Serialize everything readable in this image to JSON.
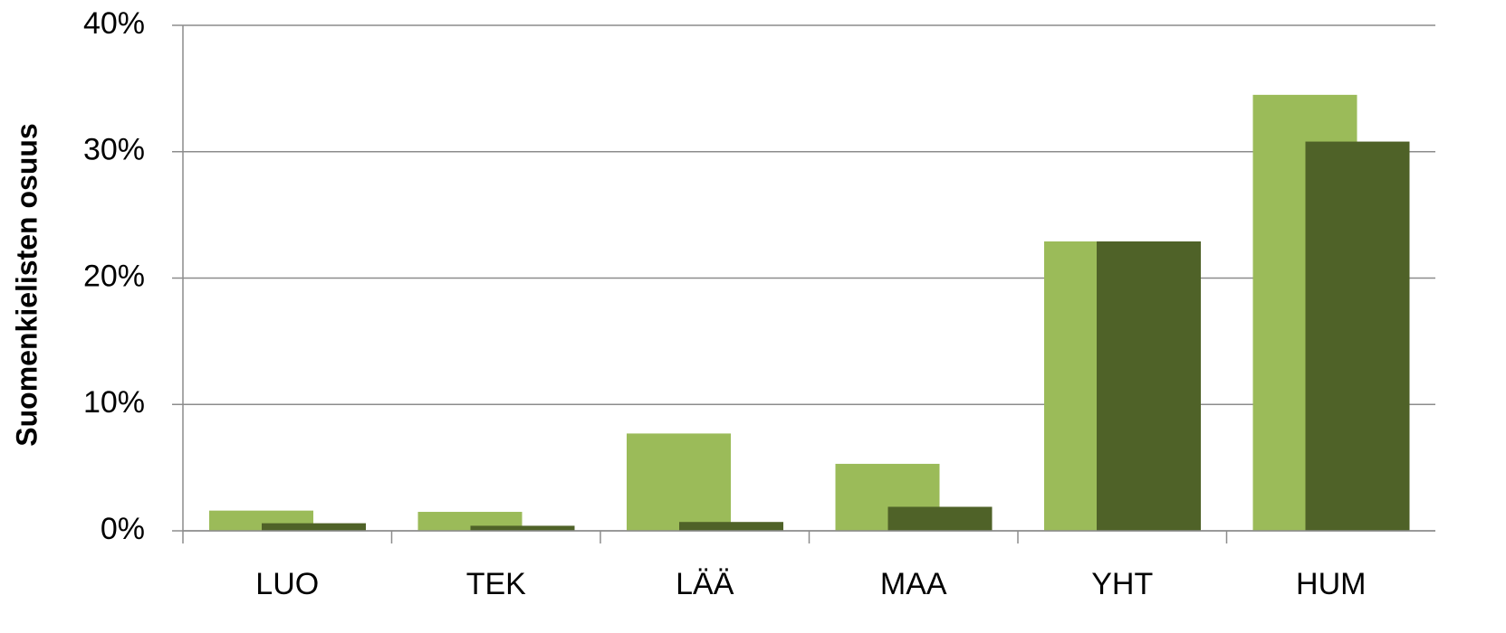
{
  "chart_data": {
    "type": "bar",
    "y_label": "Suomenkielisten osuus",
    "categories": [
      "LUO",
      "TEK",
      "LÄÄ",
      "MAA",
      "YHT",
      "HUM"
    ],
    "series": [
      {
        "color": "#9bbb59",
        "values": [
          1.6,
          1.5,
          7.7,
          5.3,
          22.9,
          34.5
        ]
      },
      {
        "color": "#4f6228",
        "values": [
          0.6,
          0.4,
          0.7,
          1.9,
          22.9,
          30.8
        ]
      }
    ],
    "ylim": [
      0,
      40
    ],
    "yticks": [
      {
        "value": 0,
        "label": "0%"
      },
      {
        "value": 10,
        "label": "10%"
      },
      {
        "value": 20,
        "label": "20%"
      },
      {
        "value": 30,
        "label": "30%"
      },
      {
        "value": 40,
        "label": "40%"
      }
    ],
    "grid": true
  }
}
